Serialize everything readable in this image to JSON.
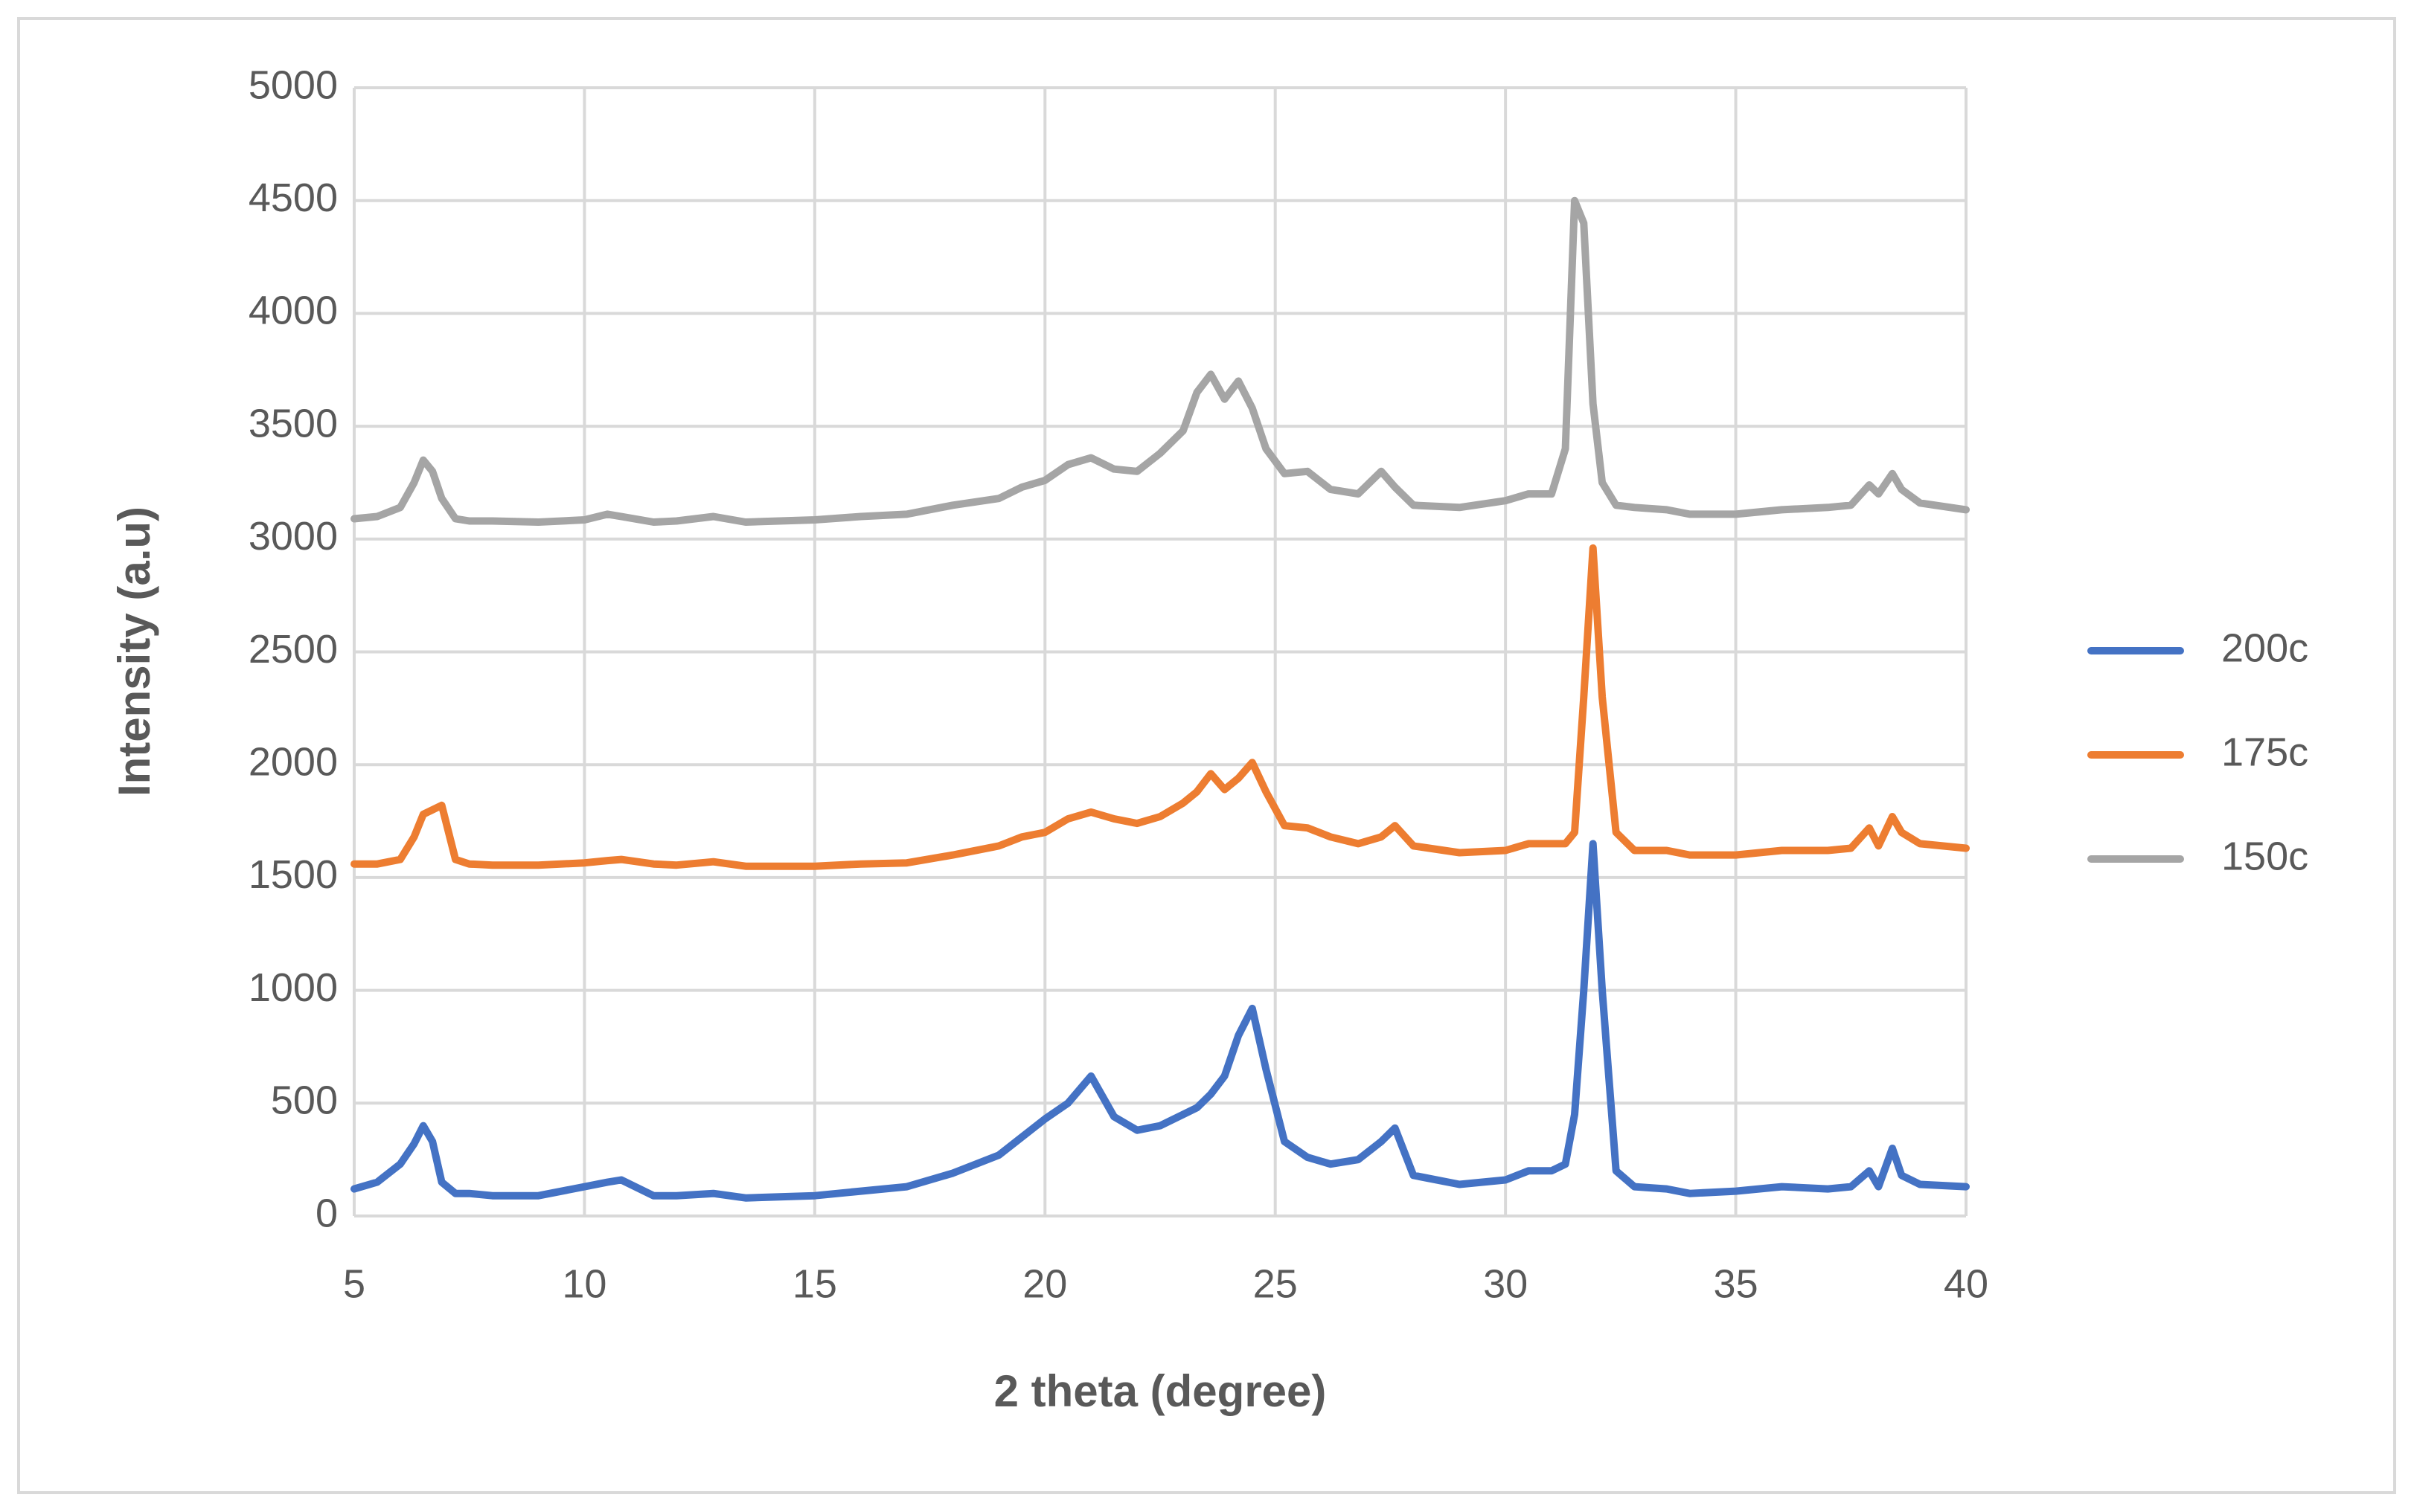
{
  "chart_data": {
    "type": "line",
    "x_label": "2 theta (degree)",
    "y_label": "Intensity (a.u)",
    "x": [
      5,
      5.5,
      6,
      6.3,
      6.5,
      6.7,
      6.9,
      7.2,
      7.5,
      8,
      9,
      10,
      10.5,
      10.8,
      11.5,
      12,
      12.8,
      13.5,
      15,
      16,
      17,
      18,
      19,
      19.5,
      20,
      20.5,
      21,
      21.5,
      22,
      22.5,
      23,
      23.3,
      23.6,
      23.9,
      24.2,
      24.5,
      24.8,
      25.2,
      25.7,
      26.2,
      26.8,
      27.3,
      27.6,
      28,
      29,
      30,
      30.5,
      31,
      31.3,
      31.5,
      31.7,
      31.9,
      32.1,
      32.4,
      32.8,
      33.5,
      34,
      35,
      36,
      37,
      37.5,
      37.9,
      38.1,
      38.4,
      38.6,
      39,
      40
    ],
    "series": [
      {
        "name": "200c",
        "color": "#4472c4",
        "values": [
          120,
          150,
          230,
          320,
          400,
          330,
          150,
          100,
          100,
          90,
          90,
          130,
          150,
          160,
          90,
          90,
          100,
          80,
          90,
          110,
          130,
          190,
          270,
          350,
          430,
          500,
          620,
          440,
          380,
          400,
          450,
          480,
          540,
          620,
          800,
          920,
          650,
          330,
          260,
          230,
          250,
          330,
          390,
          180,
          140,
          160,
          200,
          200,
          230,
          450,
          1000,
          1650,
          1000,
          200,
          130,
          120,
          100,
          110,
          130,
          120,
          130,
          200,
          130,
          300,
          180,
          140,
          130
        ]
      },
      {
        "name": "175c",
        "color": "#ed7d31",
        "values": [
          1560,
          1560,
          1580,
          1680,
          1780,
          1800,
          1820,
          1580,
          1560,
          1555,
          1555,
          1565,
          1575,
          1580,
          1560,
          1555,
          1570,
          1550,
          1550,
          1560,
          1565,
          1600,
          1640,
          1680,
          1700,
          1760,
          1790,
          1760,
          1740,
          1770,
          1830,
          1880,
          1960,
          1890,
          1940,
          2010,
          1880,
          1730,
          1720,
          1680,
          1650,
          1680,
          1730,
          1640,
          1610,
          1620,
          1650,
          1650,
          1650,
          1700,
          2300,
          2960,
          2300,
          1700,
          1620,
          1620,
          1600,
          1600,
          1620,
          1620,
          1630,
          1720,
          1640,
          1770,
          1700,
          1650,
          1630
        ]
      },
      {
        "name": "150c",
        "color": "#a5a5a5",
        "values": [
          3090,
          3100,
          3140,
          3250,
          3350,
          3300,
          3180,
          3090,
          3080,
          3080,
          3075,
          3085,
          3110,
          3100,
          3075,
          3080,
          3100,
          3075,
          3085,
          3100,
          3110,
          3150,
          3180,
          3230,
          3260,
          3330,
          3360,
          3310,
          3300,
          3380,
          3480,
          3650,
          3730,
          3620,
          3700,
          3580,
          3400,
          3290,
          3300,
          3220,
          3200,
          3300,
          3230,
          3150,
          3140,
          3170,
          3200,
          3200,
          3400,
          4500,
          4400,
          3600,
          3250,
          3150,
          3140,
          3130,
          3110,
          3110,
          3130,
          3140,
          3150,
          3240,
          3200,
          3290,
          3220,
          3160,
          3130
        ]
      }
    ],
    "xlim": [
      5,
      40
    ],
    "xticks": [
      5,
      10,
      15,
      20,
      25,
      30,
      35,
      40
    ],
    "ylim": [
      0,
      5000
    ],
    "yticks": [
      0,
      500,
      1000,
      1500,
      2000,
      2500,
      3000,
      3500,
      4000,
      4500,
      5000
    ],
    "grid": true,
    "legend": "right"
  }
}
